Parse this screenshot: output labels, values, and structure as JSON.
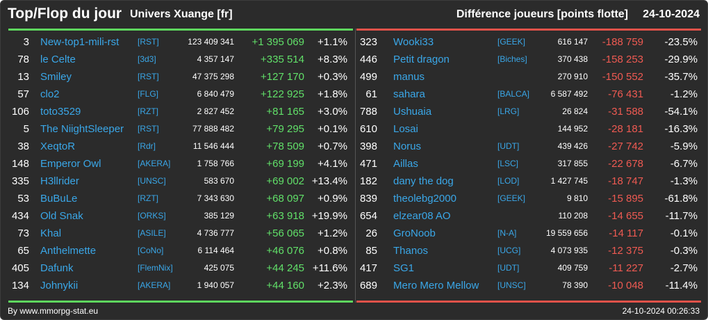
{
  "header": {
    "title": "Top/Flop du jour",
    "universe": "Univers Xuange [fr]",
    "metric": "Différence joueurs [points flotte]",
    "date": "24-10-2024"
  },
  "colors": {
    "background": "#2b2b2b",
    "top_accent": "#5ed65e",
    "flop_accent": "#e0524a",
    "player_link": "#3aa7e8",
    "gain": "#61e069",
    "loss": "#ef5a52"
  },
  "top": [
    {
      "rank": "3",
      "player": "New-top1-mili-rst",
      "alliance": "[RST]",
      "points": "123 409 341",
      "diff": "+1 395 069",
      "pct": "+1.1%"
    },
    {
      "rank": "78",
      "player": "le Celte",
      "alliance": "[3d3]",
      "points": "4 357 147",
      "diff": "+335 514",
      "pct": "+8.3%"
    },
    {
      "rank": "13",
      "player": "Smiley",
      "alliance": "[RST]",
      "points": "47 375 298",
      "diff": "+127 170",
      "pct": "+0.3%"
    },
    {
      "rank": "57",
      "player": "clo2",
      "alliance": "[FLG]",
      "points": "6 840 479",
      "diff": "+122 925",
      "pct": "+1.8%"
    },
    {
      "rank": "106",
      "player": "toto3529",
      "alliance": "[RZT]",
      "points": "2 827 452",
      "diff": "+81 165",
      "pct": "+3.0%"
    },
    {
      "rank": "5",
      "player": "The NiightSleeper",
      "alliance": "[RST]",
      "points": "77 888 482",
      "diff": "+79 295",
      "pct": "+0.1%"
    },
    {
      "rank": "38",
      "player": "XeqtoR",
      "alliance": "[Rdr]",
      "points": "11 546 444",
      "diff": "+78 509",
      "pct": "+0.7%"
    },
    {
      "rank": "148",
      "player": "Emperor Owl",
      "alliance": "[AKERA]",
      "points": "1 758 766",
      "diff": "+69 199",
      "pct": "+4.1%"
    },
    {
      "rank": "335",
      "player": "H3llrider",
      "alliance": "[UNSC]",
      "points": "583 670",
      "diff": "+69 002",
      "pct": "+13.4%"
    },
    {
      "rank": "53",
      "player": "BuBuLe",
      "alliance": "[RZT]",
      "points": "7 343 630",
      "diff": "+68 097",
      "pct": "+0.9%"
    },
    {
      "rank": "434",
      "player": "Old Snak",
      "alliance": "[ORKS]",
      "points": "385 129",
      "diff": "+63 918",
      "pct": "+19.9%"
    },
    {
      "rank": "73",
      "player": "Khal",
      "alliance": "[ASILE]",
      "points": "4 736 777",
      "diff": "+56 065",
      "pct": "+1.2%"
    },
    {
      "rank": "65",
      "player": "Anthelmette",
      "alliance": "[CoNo]",
      "points": "6 114 464",
      "diff": "+46 076",
      "pct": "+0.8%"
    },
    {
      "rank": "405",
      "player": "Dafunk",
      "alliance": "[FlemNix]",
      "points": "425 075",
      "diff": "+44 245",
      "pct": "+11.6%"
    },
    {
      "rank": "134",
      "player": "Johnykii",
      "alliance": "[AKERA]",
      "points": "1 940 057",
      "diff": "+44 160",
      "pct": "+2.3%"
    }
  ],
  "flop": [
    {
      "rank": "323",
      "player": "Wooki33",
      "alliance": "[GEEK]",
      "points": "616 147",
      "diff": "-188 759",
      "pct": "-23.5%"
    },
    {
      "rank": "446",
      "player": "Petit dragon",
      "alliance": "[Biches]",
      "points": "370 438",
      "diff": "-158 253",
      "pct": "-29.9%"
    },
    {
      "rank": "499",
      "player": "manus",
      "alliance": "",
      "points": "270 910",
      "diff": "-150 552",
      "pct": "-35.7%"
    },
    {
      "rank": "61",
      "player": "sahara",
      "alliance": "[BALCA]",
      "points": "6 587 492",
      "diff": "-76 431",
      "pct": "-1.2%"
    },
    {
      "rank": "788",
      "player": "Ushuaia",
      "alliance": "[LRG]",
      "points": "26 824",
      "diff": "-31 588",
      "pct": "-54.1%"
    },
    {
      "rank": "610",
      "player": "Losai",
      "alliance": "",
      "points": "144 952",
      "diff": "-28 181",
      "pct": "-16.3%"
    },
    {
      "rank": "398",
      "player": "Norus",
      "alliance": "[UDT]",
      "points": "439 426",
      "diff": "-27 742",
      "pct": "-5.9%"
    },
    {
      "rank": "471",
      "player": "Aillas",
      "alliance": "[LSC]",
      "points": "317 855",
      "diff": "-22 678",
      "pct": "-6.7%"
    },
    {
      "rank": "182",
      "player": "dany the dog",
      "alliance": "[LOD]",
      "points": "1 427 745",
      "diff": "-18 747",
      "pct": "-1.3%"
    },
    {
      "rank": "839",
      "player": "theolebg2000",
      "alliance": "[GEEK]",
      "points": "9 810",
      "diff": "-15 895",
      "pct": "-61.8%"
    },
    {
      "rank": "654",
      "player": "elzear08 AO",
      "alliance": "",
      "points": "110 208",
      "diff": "-14 655",
      "pct": "-11.7%"
    },
    {
      "rank": "26",
      "player": "GroNoob",
      "alliance": "[N-A]",
      "points": "19 559 656",
      "diff": "-14 117",
      "pct": "-0.1%"
    },
    {
      "rank": "85",
      "player": "Thanos",
      "alliance": "[UCG]",
      "points": "4 073 935",
      "diff": "-12 375",
      "pct": "-0.3%"
    },
    {
      "rank": "417",
      "player": "SG1",
      "alliance": "[UDT]",
      "points": "409 759",
      "diff": "-11 227",
      "pct": "-2.7%"
    },
    {
      "rank": "689",
      "player": "Mero Mero Mellow",
      "alliance": "[UNSC]",
      "points": "78 390",
      "diff": "-10 048",
      "pct": "-11.4%"
    }
  ],
  "footer": {
    "credit": "By www.mmorpg-stat.eu",
    "timestamp": "24-10-2024 00:26:33"
  }
}
